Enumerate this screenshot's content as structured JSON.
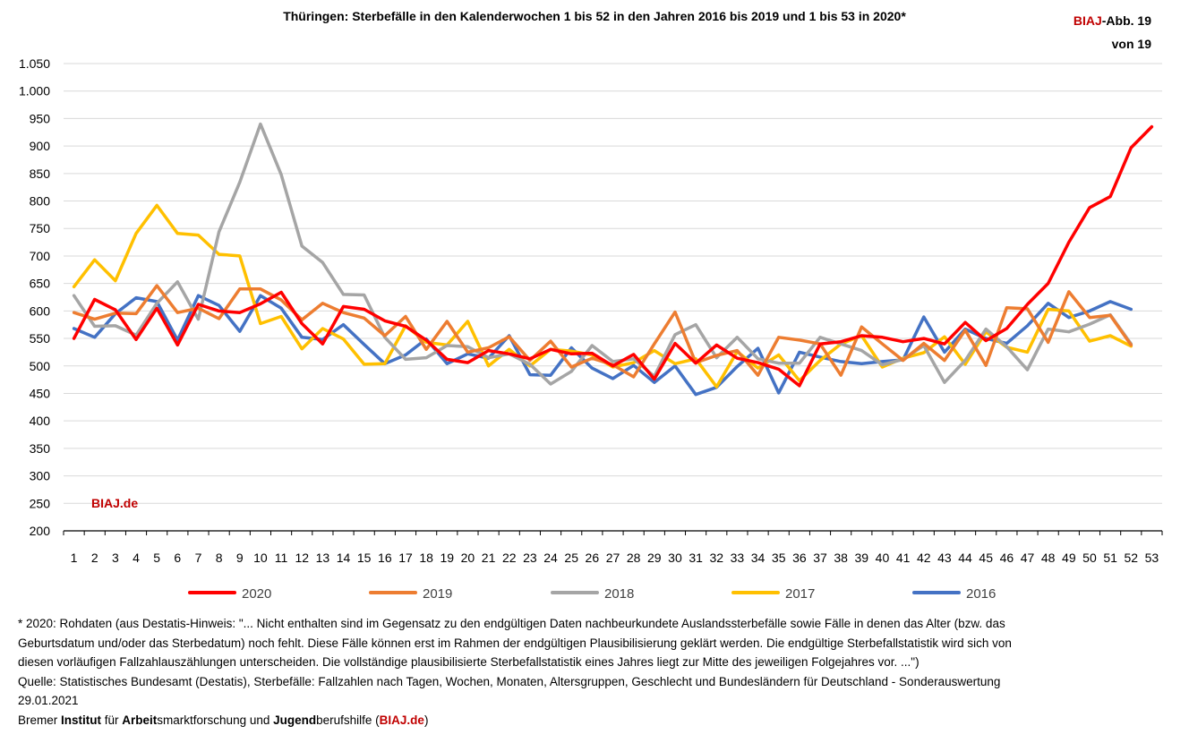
{
  "chart_data": {
    "type": "line",
    "title": "Thüringen: Sterbefälle in den Kalenderwochen 1 bis 52 in den Jahren 2016 bis 2019 und 1 bis 53 in 2020*",
    "xlabel": "",
    "ylabel": "",
    "ylim": [
      200,
      1050
    ],
    "yticks": [
      "200",
      "250",
      "300",
      "350",
      "400",
      "450",
      "500",
      "550",
      "600",
      "650",
      "700",
      "750",
      "800",
      "850",
      "900",
      "950",
      "1.000",
      "1.050"
    ],
    "x": [
      1,
      2,
      3,
      4,
      5,
      6,
      7,
      8,
      9,
      10,
      11,
      12,
      13,
      14,
      15,
      16,
      17,
      18,
      19,
      20,
      21,
      22,
      23,
      24,
      25,
      26,
      27,
      28,
      29,
      30,
      31,
      32,
      33,
      34,
      35,
      36,
      37,
      38,
      39,
      40,
      41,
      42,
      43,
      44,
      45,
      46,
      47,
      48,
      49,
      50,
      51,
      52,
      53
    ],
    "grid": true,
    "legend_position": "bottom",
    "watermark": "BIAJ.de",
    "series": [
      {
        "name": "2020",
        "color": "#ff0000",
        "values": [
          550,
          621,
          602,
          548,
          605,
          538,
          612,
          600,
          597,
          613,
          634,
          577,
          540,
          608,
          603,
          582,
          572,
          547,
          512,
          506,
          528,
          522,
          513,
          530,
          522,
          523,
          500,
          521,
          476,
          541,
          505,
          538,
          514,
          506,
          494,
          464,
          540,
          544,
          555,
          552,
          544,
          550,
          540,
          579,
          546,
          568,
          612,
          650,
          725,
          788,
          808,
          897,
          935
        ]
      },
      {
        "name": "2019",
        "color": "#ed7d31",
        "values": [
          597,
          585,
          596,
          595,
          646,
          597,
          605,
          586,
          640,
          640,
          620,
          584,
          614,
          597,
          587,
          555,
          590,
          530,
          581,
          525,
          533,
          553,
          510,
          545,
          498,
          514,
          502,
          480,
          540,
          598,
          506,
          519,
          528,
          483,
          552,
          547,
          540,
          483,
          571,
          540,
          510,
          541,
          510,
          565,
          501,
          606,
          604,
          543,
          635,
          588,
          592,
          538,
          null
        ]
      },
      {
        "name": "2018",
        "color": "#a5a5a5",
        "values": [
          628,
          572,
          573,
          556,
          614,
          653,
          585,
          744,
          834,
          940,
          848,
          718,
          688,
          630,
          629,
          552,
          512,
          515,
          537,
          535,
          515,
          522,
          503,
          467,
          490,
          537,
          508,
          513,
          481,
          557,
          575,
          515,
          552,
          513,
          505,
          505,
          552,
          540,
          528,
          502,
          512,
          537,
          470,
          510,
          567,
          535,
          493,
          567,
          562,
          576,
          593,
          540,
          null
        ]
      },
      {
        "name": "2017",
        "color": "#ffc000",
        "values": [
          644,
          693,
          655,
          741,
          792,
          741,
          738,
          703,
          700,
          577,
          590,
          531,
          568,
          549,
          503,
          504,
          573,
          543,
          538,
          581,
          500,
          530,
          500,
          530,
          527,
          520,
          498,
          506,
          528,
          504,
          513,
          462,
          526,
          496,
          520,
          473,
          510,
          540,
          555,
          498,
          514,
          524,
          553,
          503,
          562,
          534,
          525,
          603,
          600,
          545,
          555,
          536,
          null
        ]
      },
      {
        "name": "2016",
        "color": "#4472c4",
        "values": [
          568,
          552,
          595,
          624,
          617,
          547,
          628,
          610,
          563,
          628,
          605,
          552,
          548,
          575,
          539,
          504,
          520,
          549,
          504,
          522,
          514,
          555,
          484,
          483,
          533,
          496,
          477,
          501,
          470,
          500,
          448,
          461,
          499,
          532,
          451,
          525,
          516,
          508,
          504,
          508,
          511,
          589,
          525,
          567,
          550,
          541,
          573,
          614,
          588,
          600,
          617,
          603,
          null
        ]
      }
    ]
  },
  "badge": {
    "brand": "BIAJ",
    "line1_rest": "-Abb. 19",
    "line2": "von 19"
  },
  "footnote": {
    "line1": "* 2020: Rohdaten (aus Destatis-Hinweis: \"... Nicht enthalten sind im Gegensatz zu den endgültigen Daten nachbeurkundete Auslandssterbefälle sowie Fälle in denen das Alter (bzw. das",
    "line2": "Geburtsdatum und/oder das Sterbedatum) noch fehlt. Diese Fälle können erst im Rahmen der endgültigen Plausibilisierung geklärt werden. Die endgültige Sterbefallstatistik wird sich von",
    "line3": "diesen vorläufigen Fallzahlauszählungen unterscheiden. Die vollständige plausibilisierte Sterbefallstatistik eines Jahres liegt zur Mitte des jeweiligen Folgejahres vor. ...\")",
    "line4": "Quelle: Statistisches Bundesamt (Destatis), Sterbefälle: Fallzahlen nach Tagen, Wochen, Monaten, Altersgruppen, Geschlecht und Bundesländern für Deutschland - Sonderauswertung",
    "line5": "29.01.2021",
    "inst_p1": "Bremer ",
    "inst_b1": "Institut",
    "inst_p2": " für ",
    "inst_b2": "Arbeit",
    "inst_p3": "smarktforschung und ",
    "inst_b3": "Jugend",
    "inst_p4": "berufshilfe (",
    "inst_brand": "BIAJ.de",
    "inst_p5": ")"
  }
}
